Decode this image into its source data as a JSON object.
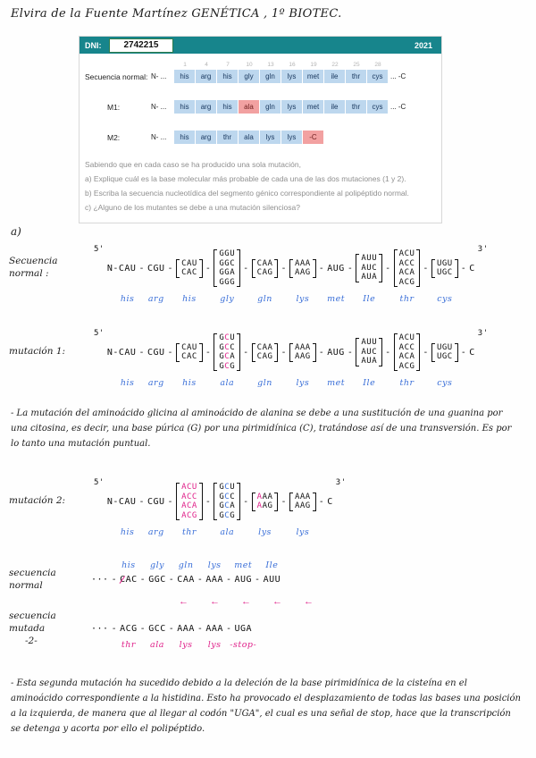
{
  "colors": {
    "teal": "#17858c",
    "cellblue": "#bdd7ee",
    "cellpink": "#f2a1a1",
    "hwblue": "#3a6fd8",
    "hwpink": "#e0218a",
    "gray": "#8f8f8f"
  },
  "header": {
    "line": "Elvira de la Fuente Martínez  GENÉTICA , 1º BIOTEC."
  },
  "exercise": {
    "dni_label": "DNI:",
    "dni_value": "2742215",
    "year": "2021",
    "positions": [
      "1",
      "4",
      "7",
      "10",
      "13",
      "16",
      "19",
      "22",
      "25",
      "28"
    ],
    "rows": [
      {
        "label": "Secuencia normal:",
        "prefix": "N- ...",
        "cells": [
          {
            "v": "his"
          },
          {
            "v": "arg"
          },
          {
            "v": "his"
          },
          {
            "v": "gly"
          },
          {
            "v": "gln"
          },
          {
            "v": "lys"
          },
          {
            "v": "met"
          },
          {
            "v": "ile"
          },
          {
            "v": "thr"
          },
          {
            "v": "cys"
          }
        ],
        "suffix": "... -C"
      },
      {
        "label": "M1:",
        "prefix": "N- ...",
        "cells": [
          {
            "v": "his"
          },
          {
            "v": "arg"
          },
          {
            "v": "his"
          },
          {
            "v": "ala",
            "hl": true
          },
          {
            "v": "gln"
          },
          {
            "v": "lys"
          },
          {
            "v": "met"
          },
          {
            "v": "ile"
          },
          {
            "v": "thr"
          },
          {
            "v": "cys"
          }
        ],
        "suffix": "... -C"
      },
      {
        "label": "M2:",
        "prefix": "N- ...",
        "cells": [
          {
            "v": "his"
          },
          {
            "v": "arg"
          },
          {
            "v": "thr"
          },
          {
            "v": "ala"
          },
          {
            "v": "lys"
          },
          {
            "v": "lys"
          },
          {
            "v": "-C",
            "hl": true
          }
        ],
        "suffix": ""
      }
    ],
    "intro": "Sabiendo que en cada caso se ha producido una sola mutación,",
    "questions": [
      "a) Explique cuál es la base molecular más probable de cada una de las dos mutaciones (1 y 2).",
      "b) Escriba la secuencia nucleotídica del segmento génico correspondiente al polipéptido normal.",
      "c) ¿Alguno de los mutantes se debe a una mutación silenciosa?"
    ]
  },
  "answers": {
    "sections": [
      {
        "kind": "head",
        "name": "answer-a-label",
        "text": "a)"
      },
      {
        "kind": "seq",
        "name": "sequence-normal",
        "label": "Secuencia normal :",
        "amino_pos": "below",
        "amino_cls": "bl",
        "tokens": [
          {
            "t": "prime",
            "v": "5'"
          },
          {
            "t": "text",
            "v": "N-"
          },
          {
            "t": "codon",
            "v": "CAU",
            "amino": "his"
          },
          {
            "t": "sep"
          },
          {
            "t": "codon",
            "v": "CGU",
            "amino": "arg"
          },
          {
            "t": "sep"
          },
          {
            "t": "stack",
            "lines": [
              "CAU",
              "CAC"
            ],
            "amino": "his"
          },
          {
            "t": "sep"
          },
          {
            "t": "stack",
            "lines": [
              "GGU",
              "GGC",
              "GGA",
              "GGG"
            ],
            "amino": "gly"
          },
          {
            "t": "sep"
          },
          {
            "t": "stack",
            "lines": [
              "CAA",
              "CAG"
            ],
            "amino": "gln"
          },
          {
            "t": "sep"
          },
          {
            "t": "stack",
            "lines": [
              "AAA",
              "AAG"
            ],
            "amino": "lys"
          },
          {
            "t": "sep"
          },
          {
            "t": "codon",
            "v": "AUG",
            "amino": "met"
          },
          {
            "t": "sep"
          },
          {
            "t": "stack",
            "lines": [
              "AUU",
              "AUC",
              "AUA"
            ],
            "amino": "Ile"
          },
          {
            "t": "sep"
          },
          {
            "t": "stack",
            "lines": [
              "ACU",
              "ACC",
              "ACA",
              "ACG"
            ],
            "amino": "thr"
          },
          {
            "t": "sep"
          },
          {
            "t": "stack",
            "lines": [
              "UGU",
              "UGC"
            ],
            "amino": "cys"
          },
          {
            "t": "sep"
          },
          {
            "t": "text",
            "v": "C"
          },
          {
            "t": "prime",
            "v": "3'"
          }
        ]
      },
      {
        "kind": "seq",
        "name": "mutation-1",
        "label": "mutación 1:",
        "amino_pos": "below",
        "amino_cls": "bl",
        "tokens": [
          {
            "t": "prime",
            "v": "5'"
          },
          {
            "t": "text",
            "v": "N-"
          },
          {
            "t": "codon",
            "v": "CAU",
            "amino": "his"
          },
          {
            "t": "sep"
          },
          {
            "t": "codon",
            "v": "CGU",
            "amino": "arg"
          },
          {
            "t": "sep"
          },
          {
            "t": "stack",
            "lines": [
              "CAU",
              "CAC"
            ],
            "amino": "his"
          },
          {
            "t": "sep"
          },
          {
            "t": "stack",
            "lines": [
              "G*C*U",
              "G*C*C",
              "G*C*A",
              "G*C*G"
            ],
            "amino": "ala"
          },
          {
            "t": "sep"
          },
          {
            "t": "stack",
            "lines": [
              "CAA",
              "CAG"
            ],
            "amino": "gln"
          },
          {
            "t": "sep"
          },
          {
            "t": "stack",
            "lines": [
              "AAA",
              "AAG"
            ],
            "amino": "lys"
          },
          {
            "t": "sep"
          },
          {
            "t": "codon",
            "v": "AUG",
            "amino": "met"
          },
          {
            "t": "sep"
          },
          {
            "t": "stack",
            "lines": [
              "AUU",
              "AUC",
              "AUA"
            ],
            "amino": "Ile"
          },
          {
            "t": "sep"
          },
          {
            "t": "stack",
            "lines": [
              "ACU",
              "ACC",
              "ACA",
              "ACG"
            ],
            "amino": "thr"
          },
          {
            "t": "sep"
          },
          {
            "t": "stack",
            "lines": [
              "UGU",
              "UGC"
            ],
            "amino": "cys"
          },
          {
            "t": "sep"
          },
          {
            "t": "text",
            "v": "C"
          },
          {
            "t": "prime",
            "v": "3'"
          }
        ]
      },
      {
        "kind": "para",
        "name": "mutation-1-explanation",
        "text": "- La mutación del aminoácido glicina al aminoácido de alanina se debe a una sustitución de una guanina por una citosina, es decir, una base púrica (G) por una pirimidínica (C), tratándose así de una transversión. Es por lo tanto una mutación puntual."
      },
      {
        "kind": "seq",
        "name": "mutation-2",
        "label": "mutación 2:",
        "amino_pos": "below",
        "amino_cls": "bl",
        "tokens": [
          {
            "t": "prime",
            "v": "5'"
          },
          {
            "t": "text",
            "v": "N-"
          },
          {
            "t": "codon",
            "v": "CAU",
            "amino": "his"
          },
          {
            "t": "sep"
          },
          {
            "t": "codon",
            "v": "CGU",
            "amino": "arg"
          },
          {
            "t": "sep"
          },
          {
            "t": "stack",
            "lines": [
              "*ACU*",
              "*ACC*",
              "*ACA*",
              "*ACG*"
            ],
            "amino": "thr"
          },
          {
            "t": "sep"
          },
          {
            "t": "stack",
            "lines": [
              "G^C^U",
              "G^C^C",
              "G^C^A",
              "G^C^G"
            ],
            "amino": "ala"
          },
          {
            "t": "sep"
          },
          {
            "t": "stack",
            "lines": [
              "*A*AA",
              "*A*AG"
            ],
            "amino": "lys"
          },
          {
            "t": "sep"
          },
          {
            "t": "stack",
            "lines": [
              "AAA",
              "AAG"
            ],
            "amino": "lys"
          },
          {
            "t": "sep"
          },
          {
            "t": "text",
            "v": "C"
          },
          {
            "t": "prime",
            "v": "3'"
          }
        ]
      },
      {
        "kind": "seq",
        "name": "comparison-normal",
        "label": "secuencia normal",
        "compact": true,
        "amino_pos": "above",
        "amino_cls": "bl",
        "tokens": [
          {
            "t": "text",
            "v": "···"
          },
          {
            "t": "sep"
          },
          {
            "t": "codon",
            "v": "~C~AC",
            "amino": "his"
          },
          {
            "t": "sep"
          },
          {
            "t": "codon",
            "v": "GGC",
            "amino": "gly"
          },
          {
            "t": "sep"
          },
          {
            "t": "codon",
            "v": "CAA",
            "amino": "gln"
          },
          {
            "t": "sep"
          },
          {
            "t": "codon",
            "v": "AAA",
            "amino": "lys"
          },
          {
            "t": "sep"
          },
          {
            "t": "codon",
            "v": "AUG",
            "amino": "met"
          },
          {
            "t": "sep"
          },
          {
            "t": "codon",
            "v": "AUU",
            "amino": "Ile"
          }
        ]
      },
      {
        "kind": "arrows",
        "name": "shift-arrows",
        "glyphs": [
          "←",
          "←",
          "←",
          "←",
          "←"
        ]
      },
      {
        "kind": "seq",
        "name": "comparison-mutated",
        "label": "secuencia mutada",
        "label2": "-2-",
        "compact": true,
        "amino_pos": "below",
        "amino_cls": "pk",
        "tokens": [
          {
            "t": "text",
            "v": "···"
          },
          {
            "t": "sep"
          },
          {
            "t": "codon",
            "v": "ACG",
            "amino": "thr"
          },
          {
            "t": "sep"
          },
          {
            "t": "codon",
            "v": "GCC",
            "amino": "ala"
          },
          {
            "t": "sep"
          },
          {
            "t": "codon",
            "v": "AAA",
            "amino": "lys"
          },
          {
            "t": "sep"
          },
          {
            "t": "codon",
            "v": "AAA",
            "amino": "lys"
          },
          {
            "t": "sep"
          },
          {
            "t": "codon",
            "v": "UGA",
            "amino": "-stop-"
          }
        ]
      },
      {
        "kind": "para",
        "name": "mutation-2-explanation",
        "text": "- Esta segunda mutación ha sucedido debido a la deleción de la base pirimidínica de la cisteína en el aminoácido correspondiente a la histidina. Esto ha provocado el desplazamiento de todas las bases una posición a la izquierda, de manera que al llegar al codón \"UGA\", el cual es una señal de stop, hace que la transcripción se detenga y acorta por ello el polipéptido."
      }
    ]
  }
}
